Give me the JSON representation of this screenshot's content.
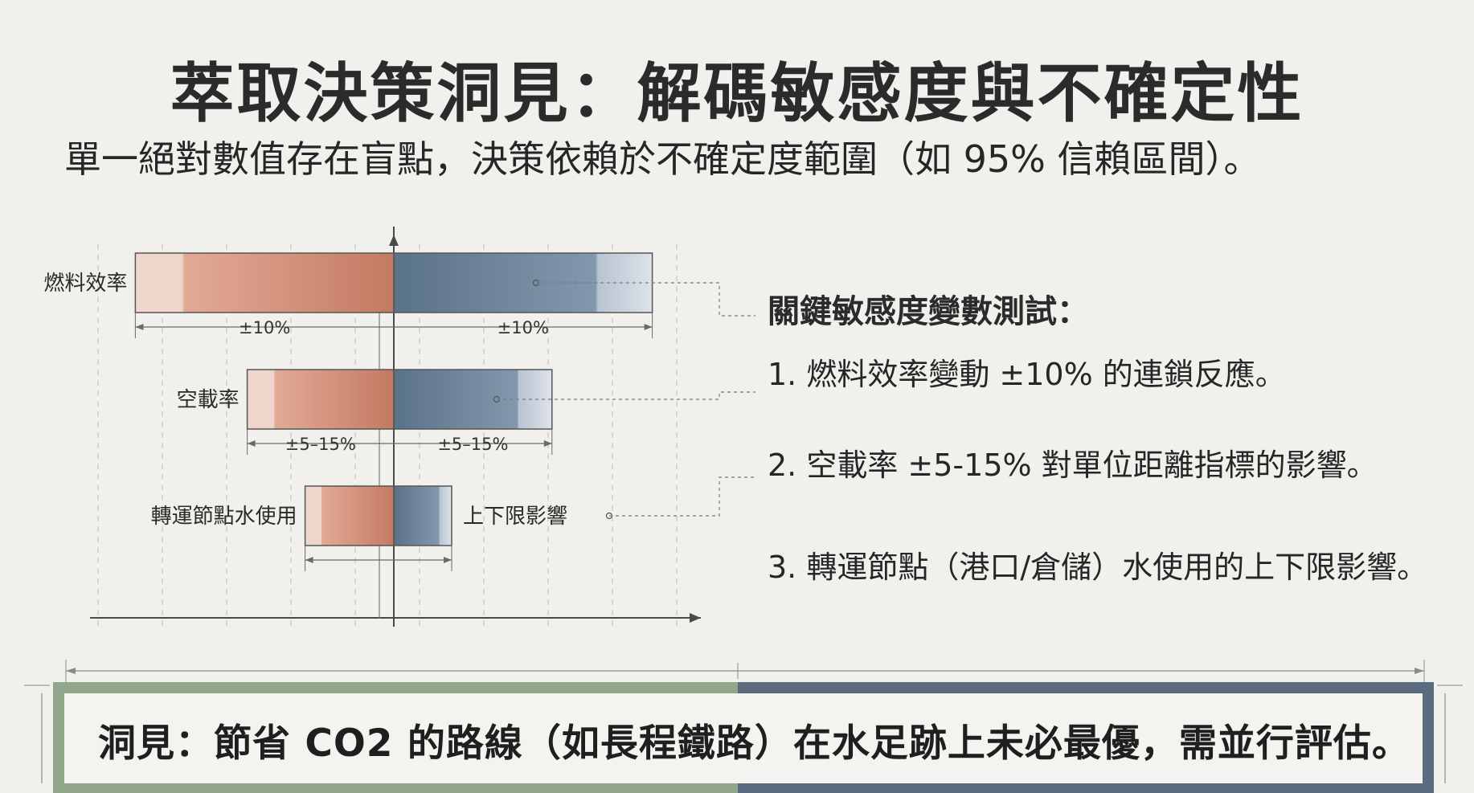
{
  "header": {
    "title": "萃取決策洞見：解碼敏感度與不確定性",
    "subtitle": "單一絕對數值存在盲點，決策依賴於不確定度範圍（如 95% 信賴區間）。"
  },
  "chart_data": {
    "type": "bar",
    "subtype": "tornado",
    "categories": [
      "燃料效率",
      "空載率",
      "轉運節點水使用"
    ],
    "series": [
      {
        "values": [
          -0.67,
          -0.38,
          -0.23
        ],
        "color_light": "#efd6cd",
        "color_dark": "#c47a62"
      },
      {
        "values": [
          0.67,
          0.41,
          0.15
        ],
        "color_light": "#dde3ea",
        "color_dark": "#5a7288"
      }
    ],
    "range_labels": [
      [
        "±10%",
        "±10%"
      ],
      [
        "±5–15%",
        "±5–15%"
      ],
      [
        "",
        ""
      ]
    ],
    "end_labels": [
      "",
      "",
      "上下限影響"
    ],
    "xlim": [
      -1,
      0.82
    ],
    "grid": true
  },
  "panel": {
    "heading": "關鍵敏感度變數測試：",
    "items": [
      "1. 燃料效率變動 ±10% 的連鎖反應。",
      "2. 空載率 ±5-15% 對單位距離指標的影響。",
      "3. 轉運節點（港口/倉儲）水使用的上下限影響。"
    ]
  },
  "insight": {
    "text": "洞見：節省 CO2 的路線（如長程鐵路）在水足跡上未必最優，需並行評估。",
    "left_color": "#91a68a",
    "right_color": "#5a6b80"
  }
}
